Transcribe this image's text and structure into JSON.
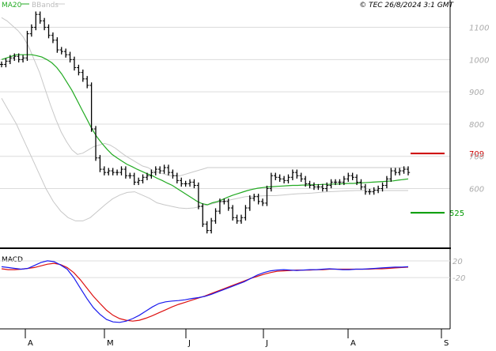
{
  "legend": {
    "ma_label": "MA20",
    "bbands_label": "BBands",
    "copyright": "© TEC 26/8/2024 3:1 GMT"
  },
  "levels": {
    "resistance": {
      "value": 709,
      "label": "709",
      "color": "#cc0000"
    },
    "support": {
      "value": 525,
      "label": "525",
      "color": "#009900"
    }
  },
  "macd": {
    "label": "MACD"
  },
  "colors": {
    "price_bars": "#000000",
    "ma20": "#22aa22",
    "bbands": "#c8c8c8",
    "macd_line": "#1a1aee",
    "signal_line": "#dd1111",
    "grid": "#dcdcdc"
  },
  "chart_data": [
    {
      "type": "ohlc",
      "title": "",
      "x_tick_labels": [
        "A",
        "M",
        "J",
        "J",
        "A",
        "S"
      ],
      "y_tick_labels": [
        "1100",
        "1000",
        "900",
        "800",
        "700",
        "600"
      ],
      "ylim": [
        420,
        1165
      ],
      "grid": true,
      "closes": [
        985,
        995,
        1005,
        1010,
        1000,
        1005,
        1080,
        1100,
        1140,
        1120,
        1100,
        1075,
        1060,
        1030,
        1025,
        1015,
        1000,
        975,
        960,
        940,
        920,
        785,
        695,
        660,
        650,
        655,
        650,
        650,
        660,
        640,
        640,
        620,
        625,
        635,
        640,
        650,
        660,
        655,
        665,
        650,
        640,
        625,
        615,
        615,
        620,
        610,
        545,
        490,
        470,
        500,
        530,
        560,
        560,
        540,
        510,
        500,
        510,
        540,
        570,
        575,
        560,
        555,
        600,
        640,
        635,
        630,
        625,
        635,
        650,
        640,
        630,
        615,
        610,
        605,
        605,
        600,
        610,
        620,
        620,
        620,
        630,
        640,
        635,
        620,
        605,
        590,
        590,
        595,
        600,
        610,
        630,
        655,
        650,
        655,
        660,
        650
      ],
      "ma20": [
        1000,
        1005,
        1010,
        1015,
        1015,
        1015,
        1015,
        1012,
        1008,
        1000,
        990,
        975,
        955,
        930,
        905,
        875,
        845,
        815,
        785,
        760,
        740,
        722,
        706,
        695,
        685,
        675,
        668,
        660,
        653,
        646,
        640,
        632,
        625,
        617,
        610,
        600,
        590,
        580,
        570,
        560,
        553,
        550,
        556,
        560,
        566,
        573,
        579,
        584,
        589,
        594,
        598,
        601,
        603,
        605,
        606,
        607,
        608,
        609,
        610,
        610,
        611,
        611,
        612,
        612,
        613,
        613,
        614,
        614,
        615,
        616,
        616,
        617,
        618,
        619,
        620,
        621,
        622,
        623,
        624,
        626,
        628,
        630
      ],
      "bband_upper": [
        1130,
        1120,
        1105,
        1090,
        1070,
        1040,
        1000,
        960,
        910,
        860,
        815,
        775,
        745,
        720,
        706,
        710,
        720,
        730,
        735,
        740,
        735,
        725,
        712,
        700,
        690,
        680,
        670,
        665,
        655,
        650,
        645,
        640,
        640,
        640,
        645,
        650,
        655,
        660,
        665,
        665,
        665,
        665,
        665,
        665,
        665,
        665,
        665,
        665,
        665,
        665,
        665,
        665,
        665,
        665,
        665,
        665,
        665,
        665,
        665,
        665,
        665,
        665,
        665,
        665,
        665,
        665,
        665,
        665,
        665,
        665,
        665,
        665,
        665,
        665,
        665,
        665
      ],
      "bband_lower": [
        880,
        840,
        800,
        750,
        700,
        650,
        600,
        560,
        530,
        510,
        500,
        500,
        510,
        530,
        550,
        568,
        580,
        588,
        590,
        580,
        570,
        556,
        550,
        545,
        540,
        538,
        540,
        545,
        550,
        556,
        560,
        565,
        570,
        575,
        576,
        577,
        578,
        578,
        580,
        582,
        584,
        585,
        586,
        588,
        590,
        591,
        592,
        593,
        594,
        594,
        594,
        594,
        594,
        594,
        594,
        594
      ]
    },
    {
      "type": "line",
      "title": "MACD",
      "y_tick_labels": [
        "20",
        "-20"
      ],
      "series": [
        {
          "name": "",
          "values": [
            6,
            4,
            2,
            0,
            2,
            9,
            16,
            20,
            18,
            10,
            0,
            -20,
            -45,
            -70,
            -92,
            -108,
            -120,
            -126,
            -127,
            -124,
            -118,
            -110,
            -100,
            -90,
            -82,
            -78,
            -76,
            -75,
            -73,
            -70,
            -68,
            -65,
            -60,
            -54,
            -48,
            -42,
            -36,
            -30,
            -22,
            -14,
            -8,
            -4,
            -2,
            -1,
            -2,
            -3,
            -2,
            -1,
            -1,
            0,
            1,
            0,
            -1,
            -1,
            0,
            0,
            1,
            2,
            3,
            4,
            5,
            5,
            6
          ]
        },
        {
          "name": "",
          "values": [
            1,
            -1,
            -1,
            0,
            2,
            4,
            8,
            12,
            14,
            11,
            4,
            -8,
            -25,
            -45,
            -65,
            -82,
            -98,
            -110,
            -118,
            -122,
            -124,
            -122,
            -117,
            -111,
            -104,
            -97,
            -90,
            -84,
            -79,
            -74,
            -69,
            -64,
            -58,
            -52,
            -46,
            -40,
            -34,
            -28,
            -22,
            -17,
            -12,
            -8,
            -5,
            -4,
            -3,
            -2,
            -2,
            -2,
            -1,
            -1,
            0,
            0,
            0,
            0,
            0,
            0,
            0,
            1,
            1,
            2,
            3,
            4,
            5
          ]
        }
      ]
    }
  ]
}
